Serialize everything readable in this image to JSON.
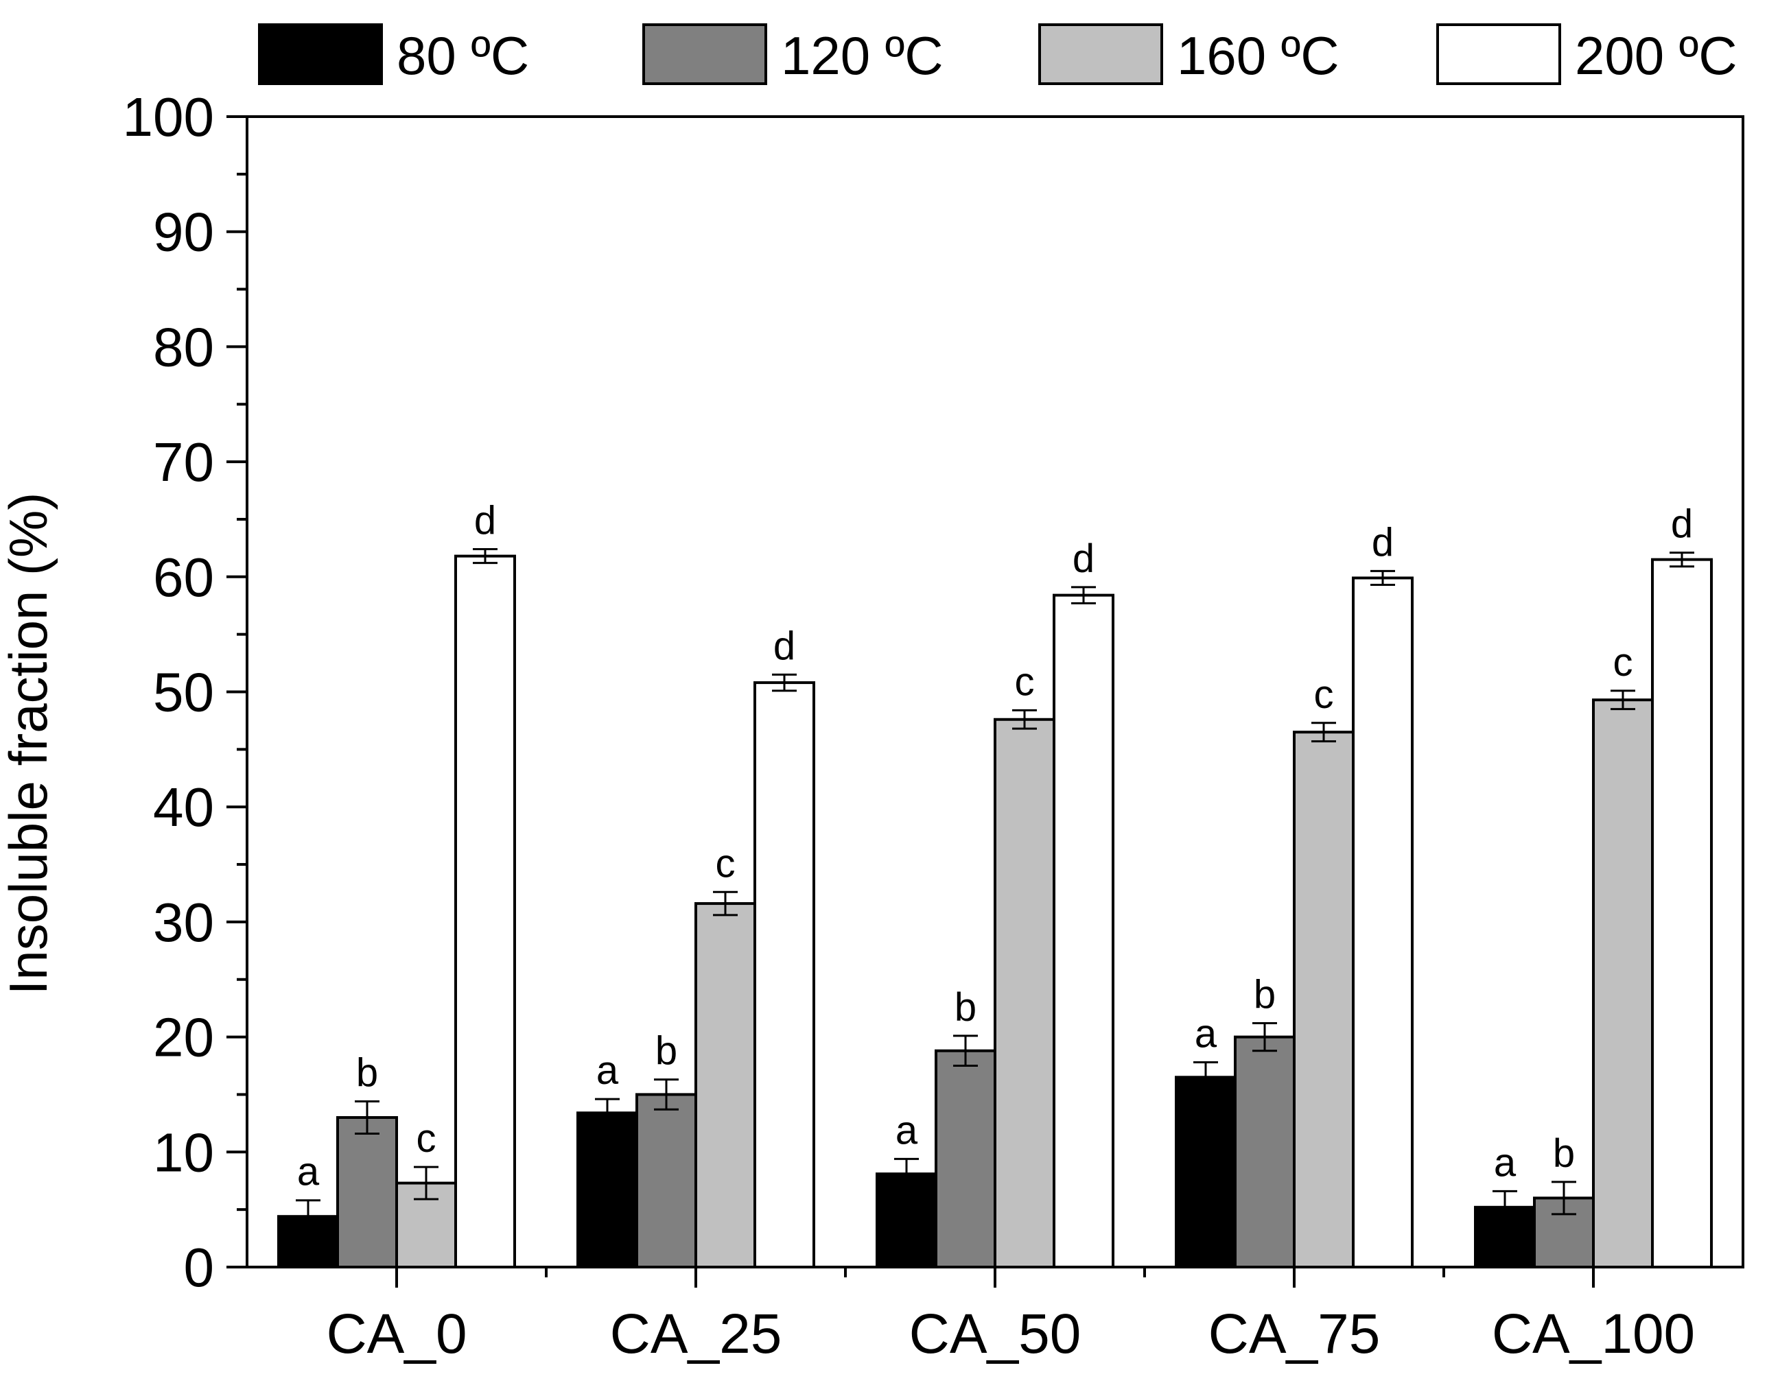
{
  "chart_data": {
    "type": "bar",
    "title": "",
    "xlabel": "",
    "ylabel": "Insoluble fraction (%)",
    "ylim": [
      0,
      100
    ],
    "yticks": [
      0,
      10,
      20,
      30,
      40,
      50,
      60,
      70,
      80,
      90,
      100
    ],
    "grid": false,
    "legend_position": "top",
    "categories": [
      "CA_0",
      "CA_25",
      "CA_50",
      "CA_75",
      "CA_100"
    ],
    "series": [
      {
        "name": "80 ºC",
        "color": "#000000",
        "values": [
          4.4,
          13.4,
          8.1,
          16.5,
          5.2
        ],
        "errors": [
          1.4,
          1.2,
          1.3,
          1.3,
          1.4
        ],
        "labels": [
          "a",
          "a",
          "a",
          "a",
          "a"
        ]
      },
      {
        "name": "120 ºC",
        "color": "#808080",
        "values": [
          13.0,
          15.0,
          18.8,
          20.0,
          6.0
        ],
        "errors": [
          1.4,
          1.3,
          1.3,
          1.2,
          1.4
        ],
        "labels": [
          "b",
          "b",
          "b",
          "b",
          "b"
        ]
      },
      {
        "name": "160 ºC",
        "color": "#c0c0c0",
        "values": [
          7.3,
          31.6,
          47.6,
          46.5,
          49.3
        ],
        "errors": [
          1.4,
          1.0,
          0.8,
          0.8,
          0.8
        ],
        "labels": [
          "c",
          "c",
          "c",
          "c",
          "c"
        ]
      },
      {
        "name": "200 ºC",
        "color": "#ffffff",
        "values": [
          61.8,
          50.8,
          58.4,
          59.9,
          61.5
        ],
        "errors": [
          0.6,
          0.7,
          0.7,
          0.6,
          0.6
        ],
        "labels": [
          "d",
          "d",
          "d",
          "d",
          "d"
        ]
      }
    ]
  }
}
